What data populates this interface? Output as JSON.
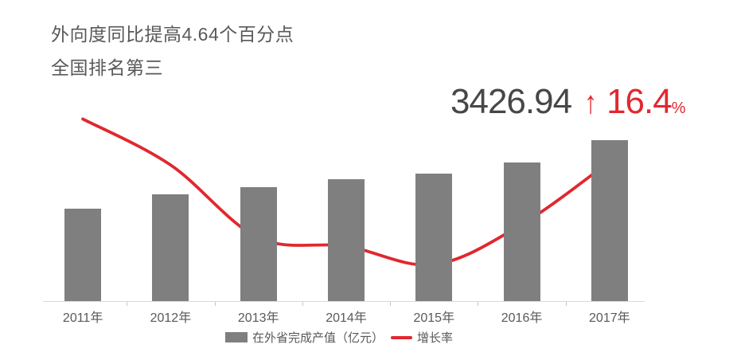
{
  "header": {
    "line1": "外向度同比提高4.64个百分点",
    "line2": "全国排名第三"
  },
  "stat": {
    "value": "3426.94",
    "arrow": "↑",
    "growth": "16.4",
    "growth_unit": "%"
  },
  "legend": {
    "bar": "在外省完成产值（亿元）",
    "line": "增长率"
  },
  "colors": {
    "bar_gray": "#7f7f7f",
    "line_red": "#e0282f",
    "title_gray": "#595959",
    "number_gray": "#474747",
    "axis_line": "#d9d9d9",
    "tick": "#c6c6c6"
  },
  "chart_data": {
    "type": "bar",
    "subtype": "bar-with-smoothed-line-overlay",
    "categories": [
      "2011年",
      "2012年",
      "2013年",
      "2014年",
      "2015年",
      "2016年",
      "2017年"
    ],
    "series": [
      {
        "name": "在外省完成产值（亿元）",
        "type": "bar",
        "unit": "亿元",
        "values": [
          1968,
          2273,
          2426,
          2600,
          2710,
          2944,
          3426.94
        ]
      },
      {
        "name": "增长率",
        "type": "line",
        "unit": "%",
        "values": [
          21.5,
          16.0,
          7.3,
          6.3,
          4.1,
          8.9,
          16.4
        ]
      }
    ],
    "title": "",
    "xlabel": "",
    "ylabel": "",
    "bar_axis_range": [
      0,
      3426.94
    ],
    "line_axis_range_pct": [
      0,
      22.4
    ],
    "grid": false,
    "y_axis_labels_visible": false,
    "legend_position": "bottom",
    "annotations": {
      "latest_value": "3426.94",
      "latest_growth": "16.4%"
    }
  }
}
